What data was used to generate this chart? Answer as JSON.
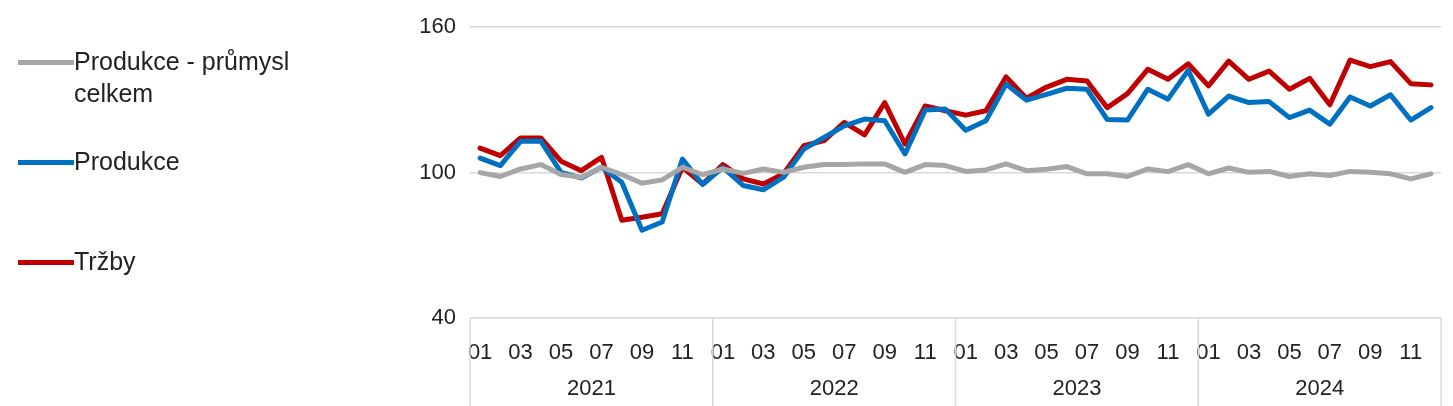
{
  "chart_data": {
    "type": "line",
    "categories": [
      "01",
      null,
      "03",
      null,
      "05",
      null,
      "07",
      null,
      "09",
      null,
      "11",
      null,
      "01",
      null,
      "03",
      null,
      "05",
      null,
      "07",
      null,
      "09",
      null,
      "11",
      null,
      "01",
      null,
      "03",
      null,
      "05",
      null,
      "07",
      null,
      "09",
      null,
      "11",
      null,
      "01",
      null,
      "03",
      null,
      "05",
      null,
      "07",
      null,
      "09",
      null,
      "11",
      null
    ],
    "series": [
      {
        "name": "Produkce - průmysl celkem",
        "color": "#a6a6a6",
        "values": [
          100,
          98.4,
          101.5,
          103.3,
          99.2,
          98.1,
          102.2,
          99.2,
          95.6,
          97,
          102.2,
          99.2,
          101.5,
          99.7,
          101.5,
          100.1,
          102.2,
          103.3,
          103.3,
          103.6,
          103.6,
          100.1,
          103.3,
          102.9,
          100.5,
          101.1,
          103.6,
          100.8,
          101.4,
          102.5,
          99.5,
          99.5,
          98.4,
          101.5,
          100.4,
          103.3,
          99.5,
          101.9,
          100.1,
          100.5,
          98.4,
          99.5,
          98.8,
          100.5,
          100.1,
          99.5,
          97.4,
          99.5
        ]
      },
      {
        "name": "Produkce",
        "color": "#0070c0",
        "values": [
          106,
          102.9,
          112.9,
          113,
          100.1,
          97.8,
          102.2,
          96,
          76.2,
          79.6,
          105.6,
          95.1,
          102.2,
          94.7,
          92.9,
          98.1,
          109.7,
          114.5,
          119.3,
          122.1,
          121.4,
          107.7,
          125.8,
          126.2,
          117.5,
          121.4,
          136.5,
          129.9,
          132.3,
          134.8,
          134.4,
          121.9,
          121.7,
          134.4,
          130.3,
          142.2,
          124.1,
          131.6,
          128.9,
          129.3,
          122.7,
          125.8,
          120,
          131.2,
          127.5,
          132.1,
          121.7,
          126.8
        ]
      },
      {
        "name": "Tržby",
        "color": "#c00000",
        "values": [
          110.1,
          107,
          114.3,
          114.3,
          104.7,
          100.8,
          106.3,
          80.3,
          81.6,
          83,
          102.2,
          95.3,
          103.3,
          97.4,
          95.3,
          99.5,
          111.1,
          113.2,
          120.7,
          115.6,
          128.9,
          111.8,
          127.5,
          125.5,
          123.7,
          125.5,
          139.5,
          130.7,
          135.3,
          138.5,
          137.8,
          126.8,
          132.6,
          142.6,
          138.5,
          144.9,
          135.8,
          146,
          138.5,
          141.9,
          134.4,
          138.9,
          128,
          146.4,
          143.7,
          145.8,
          136.7,
          136.2
        ]
      }
    ],
    "annotations": [
      "2021",
      "2022",
      "2023",
      "2024"
    ],
    "ylim": [
      40,
      160
    ],
    "yticks": [
      40,
      100,
      160
    ],
    "grid": "y",
    "legend": "left",
    "marker": "none",
    "line_style": "solid"
  }
}
